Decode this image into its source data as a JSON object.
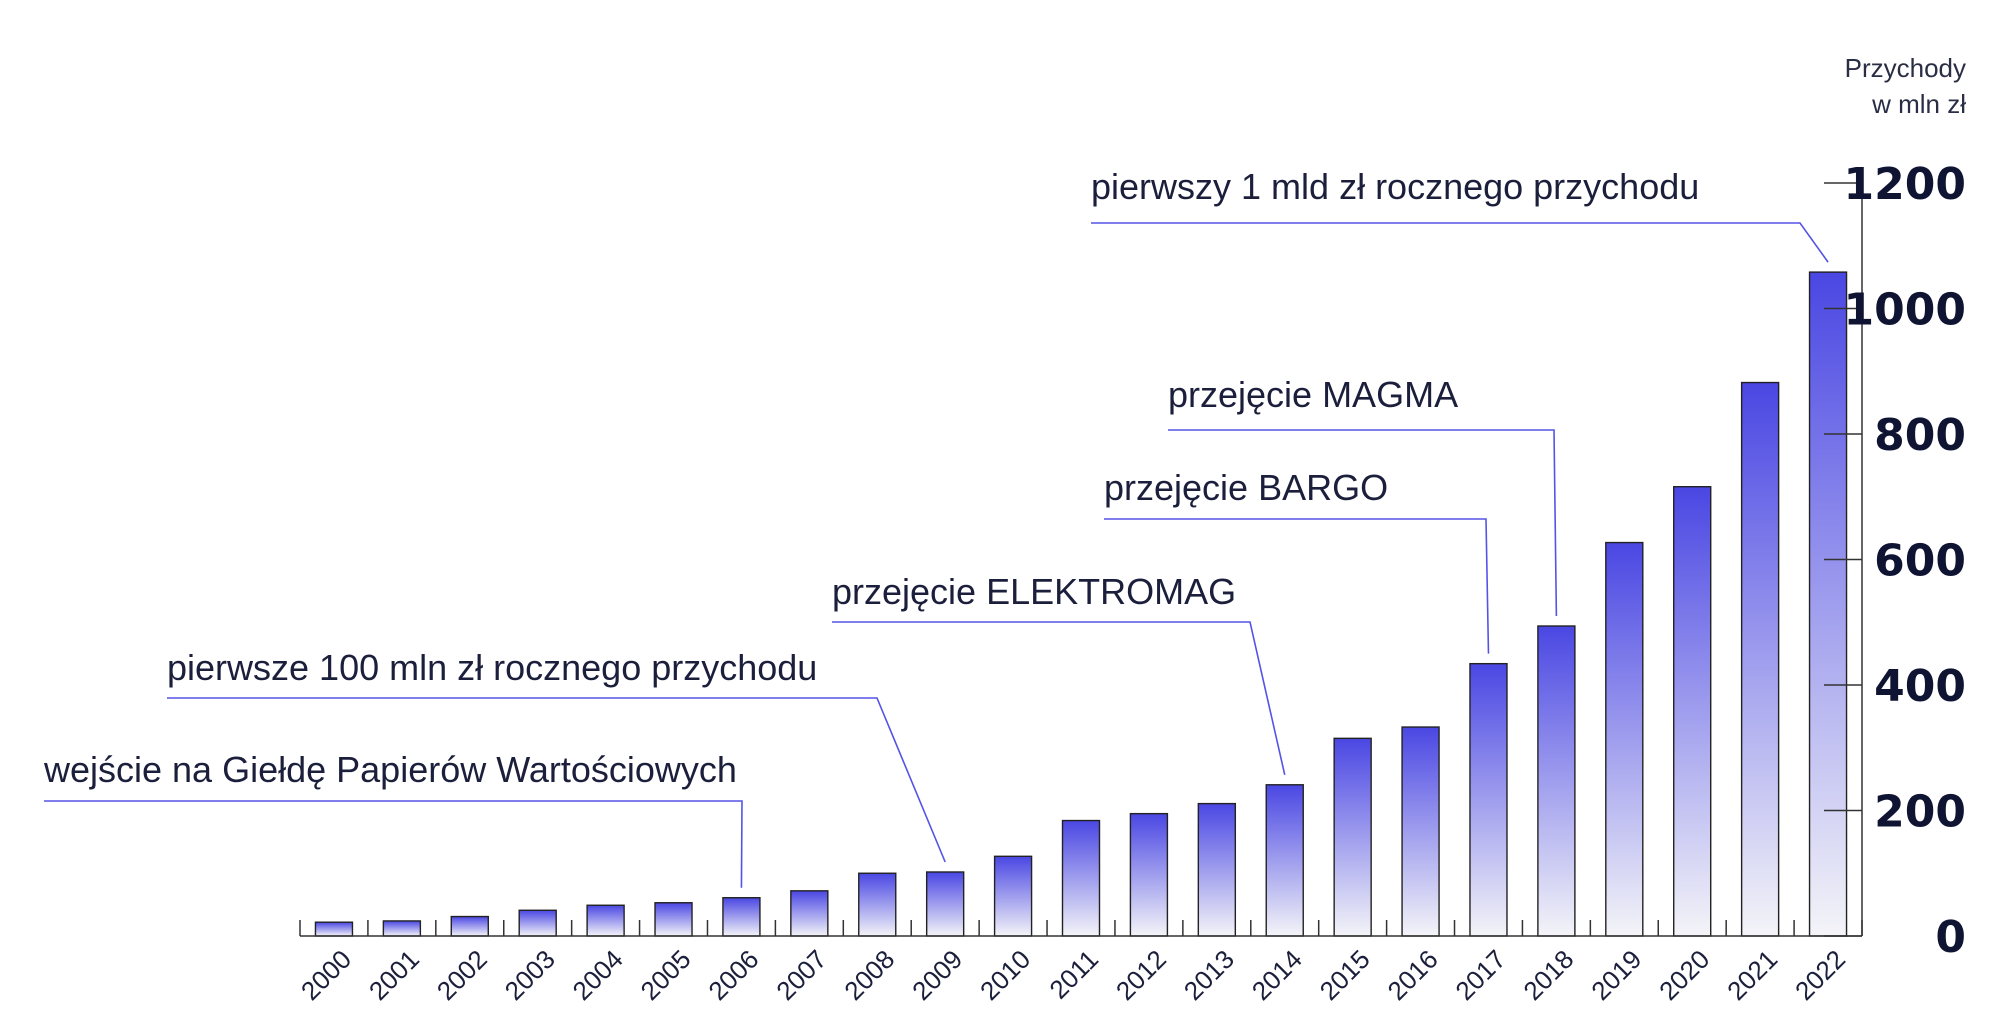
{
  "chart_data": {
    "type": "bar",
    "ylabel_line1": "Przychody",
    "ylabel_line2": "w mln zł",
    "ylim": [
      0,
      1200
    ],
    "yticks": [
      0,
      200,
      400,
      600,
      800,
      1000,
      1200
    ],
    "grid": false,
    "colors": {
      "bar_top": "#4a47e3",
      "bar_bottom": "#f4f4f8",
      "leader": "#5553e6"
    },
    "categories": [
      "2000",
      "2001",
      "2002",
      "2003",
      "2004",
      "2005",
      "2006",
      "2007",
      "2008",
      "2009",
      "2010",
      "2011",
      "2012",
      "2013",
      "2014",
      "2015",
      "2016",
      "2017",
      "2018",
      "2019",
      "2020",
      "2021",
      "2022"
    ],
    "values": [
      22,
      24,
      31,
      41,
      49,
      53,
      61,
      72,
      100,
      102,
      127,
      184,
      195,
      211,
      241,
      315,
      333,
      434,
      494,
      627,
      716,
      882,
      1058
    ],
    "annotations": [
      {
        "text": "wejście na Giełdę Papierów Wartościowych",
        "year": "2006"
      },
      {
        "text": "pierwsze 100 mln zł rocznego przychodu",
        "year": "2009"
      },
      {
        "text": "przejęcie ELEKTROMAG",
        "year": "2014"
      },
      {
        "text": "przejęcie BARGO",
        "year": "2017"
      },
      {
        "text": "przejęcie MAGMA",
        "year": "2018"
      },
      {
        "text": "pierwszy 1 mld zł rocznego przychodu",
        "year": "2022"
      }
    ]
  }
}
